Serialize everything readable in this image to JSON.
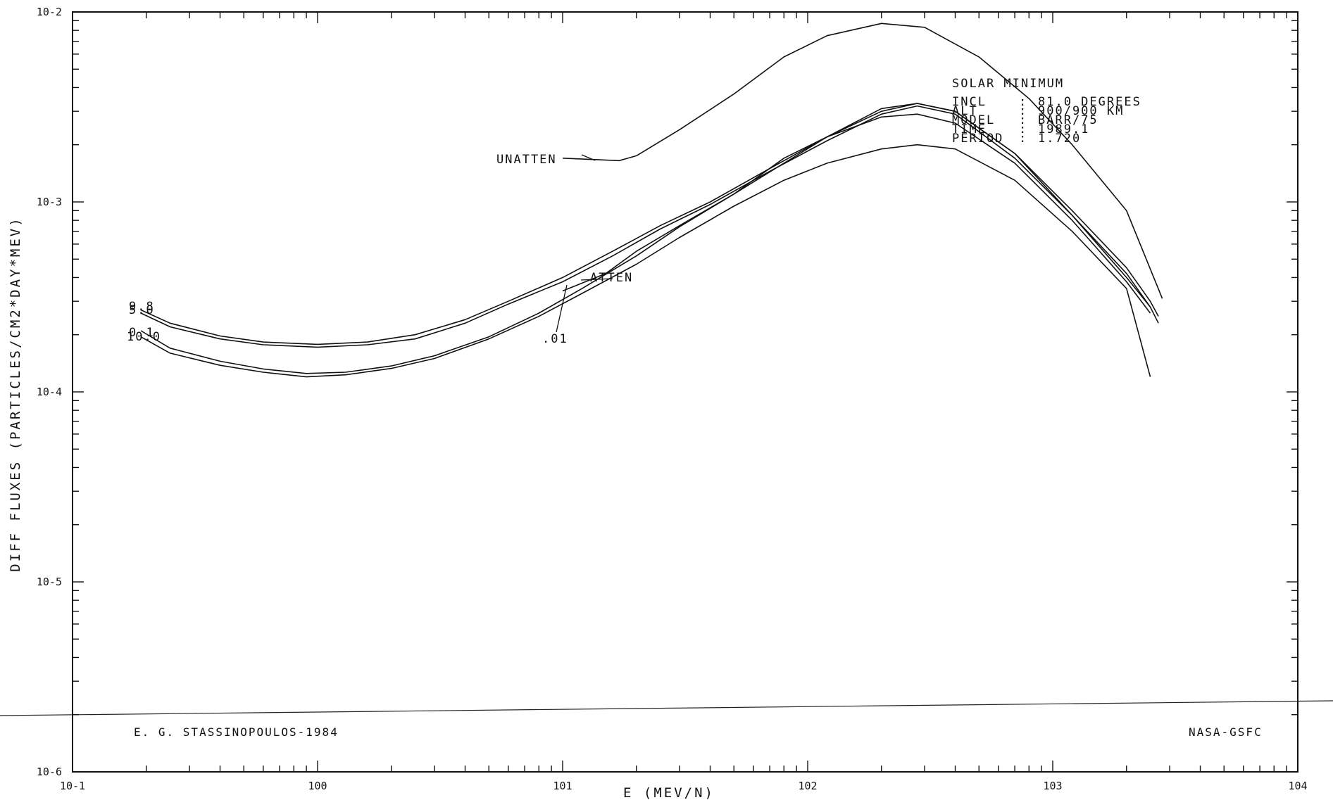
{
  "chart_data": {
    "type": "line",
    "xlabel": "E  (MEV/N)",
    "ylabel": "DIFF FLUXES (PARTICLES/CM2*DAY*MEV)",
    "xscale": "log",
    "yscale": "log",
    "xlim": [
      0.1,
      10000
    ],
    "ylim": [
      1e-06,
      0.01
    ],
    "grid": false,
    "x_tick_labels": [
      "10-1",
      "100",
      "101",
      "102",
      "103",
      "104"
    ],
    "y_tick_labels": [
      "10-6",
      "10-5",
      "10-4",
      "10-3",
      "10-2"
    ],
    "info_box": {
      "heading": "SOLAR MINIMUM",
      "rows": [
        {
          "key": "INCL",
          "sep": ":",
          "value": "81.0  DEGREES"
        },
        {
          "key": "ALT",
          "sep": ":",
          "value": "900/900 KM"
        },
        {
          "key": "MODEL",
          "sep": ":",
          "value": "BARR/75"
        },
        {
          "key": "TIME",
          "sep": ":",
          "value": "1989.1"
        },
        {
          "key": "PERIOD",
          "sep": ":",
          "value": "1.720"
        }
      ]
    },
    "annotations": {
      "unatten": "UNATTEN",
      "atten": "ATTEN",
      "curve_label_01": ".01",
      "curve_label_top": "9.8",
      "curve_label_top2": "5.0",
      "curve_label_bottom": "10.0",
      "curve_label_bottom2": "0.1"
    },
    "credits": {
      "left": "E. G. STASSINOPOULOS-1984",
      "right": "NASA-GSFC"
    },
    "series": [
      {
        "x": [
          10,
          17,
          20,
          30,
          50,
          80,
          120,
          200,
          300,
          500,
          800,
          1200,
          2000,
          2800
        ],
        "y": [
          0.0017,
          0.00165,
          0.00175,
          0.0024,
          0.0037,
          0.0058,
          0.0075,
          0.0087,
          0.0083,
          0.0058,
          0.0035,
          0.002,
          0.0009,
          0.00031
        ]
      },
      {
        "x": [
          0.19,
          0.25,
          0.4,
          0.6,
          1.0,
          1.6,
          2.5,
          4,
          6,
          10,
          16,
          25,
          40,
          70,
          120,
          200,
          280,
          400,
          700,
          1200,
          2000,
          2500,
          2700
        ],
        "y": [
          0.00027,
          0.00023,
          0.000197,
          0.000183,
          0.000178,
          0.000183,
          0.0002,
          0.00024,
          0.0003,
          0.0004,
          0.00055,
          0.00075,
          0.001,
          0.0015,
          0.0022,
          0.003,
          0.0033,
          0.003,
          0.0018,
          0.0009,
          0.00045,
          0.0003,
          0.00025
        ]
      },
      {
        "x": [
          0.19,
          0.25,
          0.4,
          0.6,
          1.0,
          1.6,
          2.5,
          4,
          6,
          10,
          16,
          25,
          40,
          70,
          120,
          200,
          280,
          400,
          700,
          1200,
          2000,
          2500,
          2700
        ],
        "y": [
          0.00026,
          0.00022,
          0.00019,
          0.000177,
          0.000172,
          0.000177,
          0.00019,
          0.00023,
          0.00029,
          0.00038,
          0.00052,
          0.00072,
          0.00097,
          0.00145,
          0.0021,
          0.0029,
          0.0032,
          0.0029,
          0.0017,
          0.00085,
          0.00042,
          0.00028,
          0.00023
        ]
      },
      {
        "x": [
          0.19,
          0.25,
          0.4,
          0.6,
          0.9,
          1.3,
          2,
          3,
          5,
          8,
          12,
          20,
          30,
          50,
          80,
          120,
          200,
          280,
          400,
          700,
          1200,
          2000,
          2500
        ],
        "y": [
          0.00021,
          0.00017,
          0.000145,
          0.000132,
          0.000125,
          0.000127,
          0.000137,
          0.000155,
          0.000195,
          0.00026,
          0.00035,
          0.00052,
          0.00074,
          0.0011,
          0.0016,
          0.0022,
          0.0031,
          0.0033,
          0.003,
          0.0018,
          0.00085,
          0.0004,
          0.00028
        ]
      },
      {
        "x": [
          0.19,
          0.25,
          0.4,
          0.6,
          0.9,
          1.3,
          2,
          3,
          5,
          8,
          12,
          20,
          30,
          50,
          80,
          120,
          200,
          280,
          400,
          700,
          1200,
          2000,
          2500
        ],
        "y": [
          0.000195,
          0.00016,
          0.000138,
          0.000127,
          0.00012,
          0.000123,
          0.000133,
          0.00015,
          0.00019,
          0.00025,
          0.00033,
          0.00047,
          0.00065,
          0.00095,
          0.0013,
          0.0016,
          0.0019,
          0.002,
          0.0019,
          0.0013,
          0.0007,
          0.00035,
          0.00012
        ]
      },
      {
        "x": [
          10,
          15,
          20,
          30,
          50,
          80,
          120,
          200,
          280,
          400,
          700,
          1200,
          2000,
          2500
        ],
        "y": [
          0.00034,
          0.00042,
          0.00055,
          0.00075,
          0.0011,
          0.0017,
          0.0022,
          0.0028,
          0.0029,
          0.0026,
          0.0016,
          0.0008,
          0.00038,
          0.00026
        ]
      }
    ]
  }
}
